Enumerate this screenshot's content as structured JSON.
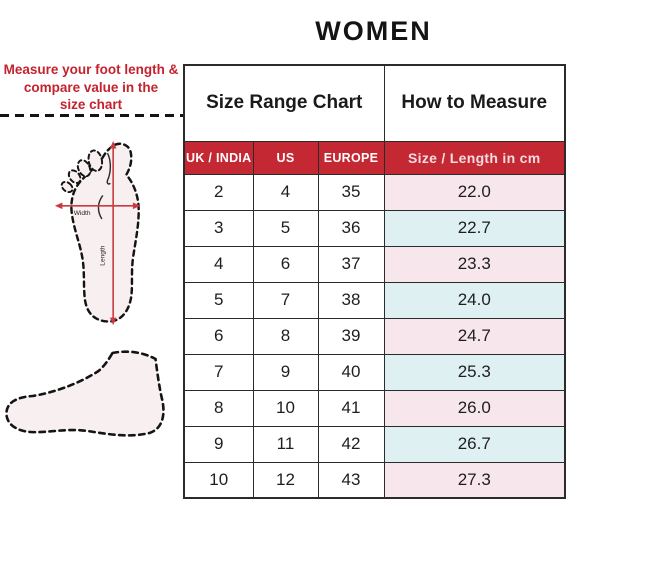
{
  "title": "WOMEN",
  "instruction": {
    "line1": "Measure your foot length &",
    "line2": "compare value in the",
    "line3": "size chart"
  },
  "foot_diagram": {
    "width_label": "Width",
    "length_label": "Length"
  },
  "table": {
    "section_headers": {
      "size_range": "Size Range Chart",
      "how_to_measure": "How to Measure"
    },
    "columns": [
      "UK / INDIA",
      "US",
      "EUROPE",
      "Size / Length in cm"
    ],
    "rows": [
      {
        "uk_india": "2",
        "us": "4",
        "europe": "35",
        "length_cm": "22.0"
      },
      {
        "uk_india": "3",
        "us": "5",
        "europe": "36",
        "length_cm": "22.7"
      },
      {
        "uk_india": "4",
        "us": "6",
        "europe": "37",
        "length_cm": "23.3"
      },
      {
        "uk_india": "5",
        "us": "7",
        "europe": "38",
        "length_cm": "24.0"
      },
      {
        "uk_india": "6",
        "us": "8",
        "europe": "39",
        "length_cm": "24.7"
      },
      {
        "uk_india": "7",
        "us": "9",
        "europe": "40",
        "length_cm": "25.3"
      },
      {
        "uk_india": "8",
        "us": "10",
        "europe": "41",
        "length_cm": "26.0"
      },
      {
        "uk_india": "9",
        "us": "11",
        "europe": "42",
        "length_cm": "26.7"
      },
      {
        "uk_india": "10",
        "us": "12",
        "europe": "43",
        "length_cm": "27.3"
      }
    ]
  },
  "chart_data": {
    "type": "table",
    "title": "WOMEN",
    "columns": [
      "UK / INDIA",
      "US",
      "EUROPE",
      "Size / Length in cm"
    ],
    "rows": [
      [
        "2",
        "4",
        "35",
        "22.0"
      ],
      [
        "3",
        "5",
        "36",
        "22.7"
      ],
      [
        "4",
        "6",
        "37",
        "23.3"
      ],
      [
        "5",
        "7",
        "38",
        "24.0"
      ],
      [
        "6",
        "8",
        "39",
        "24.7"
      ],
      [
        "7",
        "9",
        "40",
        "25.3"
      ],
      [
        "8",
        "10",
        "41",
        "26.0"
      ],
      [
        "9",
        "11",
        "42",
        "26.7"
      ],
      [
        "10",
        "12",
        "43",
        "27.3"
      ]
    ]
  },
  "colors": {
    "accent_red": "#C42833",
    "instruction_text_red": "#C4232E",
    "row_pink": "#F7E7ED",
    "row_blue": "#DFF0F2",
    "border_dark": "#2B2B2B",
    "foot_fill": "#F8F0F0",
    "cm_header_text": "#F4DCDF"
  }
}
